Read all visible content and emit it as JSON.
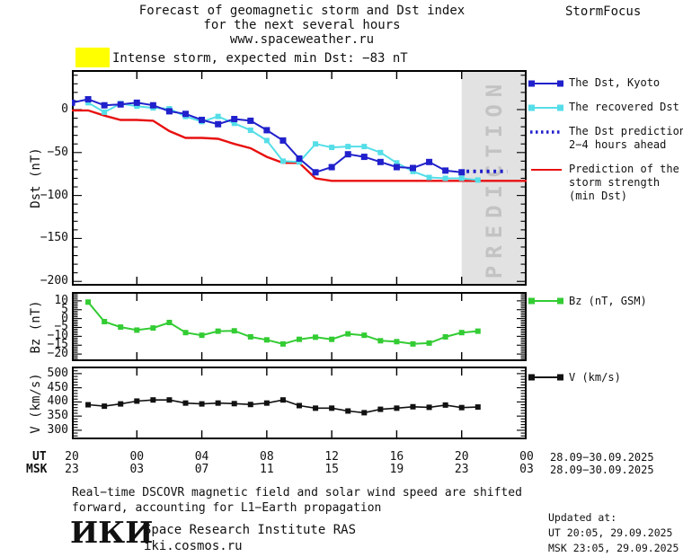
{
  "header": {
    "title_line1": "Forecast of geomagnetic storm and Dst index",
    "title_line2": "for the next several hours",
    "title_line3": "www.spaceweather.ru",
    "brand": "StormFocus"
  },
  "alert": {
    "swatch_color": "#FFFF00",
    "text": "Intense storm, expected min Dst: −83 nT"
  },
  "legend_dst": [
    {
      "id": "dst_kyoto",
      "style": "line-markers",
      "color": "#2020CC",
      "lines": [
        "The Dst, Kyoto"
      ]
    },
    {
      "id": "recovered_dst",
      "style": "line-markers",
      "color": "#55DEE8",
      "lines": [
        "The recovered Dst"
      ]
    },
    {
      "id": "dst_prediction",
      "style": "dotted",
      "color": "#2020CC",
      "lines": [
        "The Dst prediction",
        "2−4 hours ahead"
      ]
    },
    {
      "id": "storm_strength",
      "style": "line",
      "color": "#E81010",
      "lines": [
        "Prediction of the",
        "storm strength",
        "(min Dst)"
      ]
    }
  ],
  "chart_data": [
    {
      "id": "dst",
      "type": "line",
      "ylabel": "Dst (nT)",
      "x_hours_from": "20:00 UT 28.09",
      "xlim": [
        0,
        28
      ],
      "ylim": [
        46,
        -205
      ],
      "grid": false,
      "xticks": [
        0,
        4,
        8,
        12,
        16,
        20,
        24,
        28
      ],
      "yticks": [
        {
          "v": 0,
          "label": "0"
        },
        {
          "v": -50,
          "label": "−50"
        },
        {
          "v": -100,
          "label": "−100"
        },
        {
          "v": -150,
          "label": "−150"
        },
        {
          "v": -200,
          "label": "−200"
        }
      ],
      "ytick_minor_step": 10,
      "prediction_band": {
        "x0": 24,
        "x1": 28,
        "label": "PREDICTION",
        "fill": "#E2E2E2",
        "text_color": "#C3C3C3"
      },
      "series": [
        {
          "key": "storm_strength",
          "name": "Prediction of the storm strength (min Dst)",
          "color": "#E81010",
          "width": 2.4,
          "marker": 0,
          "x": [
            0,
            1,
            2,
            3,
            4,
            5,
            6,
            7,
            8,
            9,
            10,
            11,
            12,
            13,
            14,
            15,
            16,
            17,
            18,
            19,
            20,
            21,
            22,
            23,
            24,
            25,
            26,
            27,
            28
          ],
          "y": [
            -1,
            -1,
            -7,
            -12,
            -12,
            -13,
            -25,
            -33,
            -33,
            -34,
            -40,
            -45,
            -55,
            -62,
            -62,
            -80,
            -83,
            -83,
            -83,
            -83,
            -83,
            -83,
            -83,
            -83,
            -83,
            -83,
            -83,
            -83,
            -83
          ]
        },
        {
          "key": "recovered_dst",
          "name": "The recovered Dst",
          "color": "#55DEE8",
          "width": 2,
          "marker": 6,
          "x": [
            1,
            2,
            3,
            4,
            5,
            6,
            7,
            8,
            9,
            10,
            11,
            12,
            13,
            14,
            15,
            16,
            17,
            18,
            19,
            20,
            21,
            22,
            23,
            24,
            25
          ],
          "y": [
            8,
            -3,
            7,
            4,
            2,
            1,
            -8,
            -14,
            -8,
            -16,
            -24,
            -36,
            -60,
            -61,
            -40,
            -44,
            -43,
            -43,
            -50,
            -62,
            -72,
            -79,
            -80,
            -80,
            -82
          ]
        },
        {
          "key": "dst_kyoto",
          "name": "The Dst, Kyoto",
          "color": "#2020CC",
          "width": 2,
          "marker": 7,
          "x": [
            0,
            1,
            2,
            3,
            4,
            5,
            6,
            7,
            8,
            9,
            10,
            11,
            12,
            13,
            14,
            15,
            16,
            17,
            18,
            19,
            20,
            21,
            22,
            23,
            24
          ],
          "y": [
            8,
            12,
            5,
            6,
            8,
            5,
            -2,
            -5,
            -12,
            -17,
            -11,
            -13,
            -24,
            -36,
            -57,
            -73,
            -67,
            -52,
            -55,
            -61,
            -67,
            -68,
            -61,
            -71,
            -73
          ]
        },
        {
          "key": "dst_prediction",
          "name": "The Dst prediction 2−4 hours ahead",
          "color": "#2020CC",
          "width": 4,
          "marker": 0,
          "dash": "3 4.5",
          "x": [
            24.3,
            26.8
          ],
          "y": [
            -72,
            -72
          ]
        }
      ]
    },
    {
      "id": "bz",
      "type": "line",
      "ylabel": "Bz (nT)",
      "legend": "Bz (nT, GSM)",
      "x_hours_from": "20:00 UT 28.09",
      "xlim": [
        0,
        28
      ],
      "ylim": [
        15,
        -24
      ],
      "grid": false,
      "xticks": [
        0,
        4,
        8,
        12,
        16,
        20,
        24,
        28
      ],
      "yticks": [
        {
          "v": 10,
          "label": "10"
        },
        {
          "v": 5,
          "label": "5"
        },
        {
          "v": 0,
          "label": "0"
        },
        {
          "v": -5,
          "label": "−5"
        },
        {
          "v": -10,
          "label": "−10"
        },
        {
          "v": -15,
          "label": "−15"
        },
        {
          "v": -20,
          "label": "−20"
        }
      ],
      "ytick_minor_step": 1,
      "series": [
        {
          "key": "bz",
          "name": "Bz (nT, GSM)",
          "color": "#33CC33",
          "width": 2,
          "marker": 6,
          "x": [
            1,
            2,
            3,
            4,
            5,
            6,
            7,
            8,
            9,
            10,
            11,
            12,
            13,
            14,
            15,
            16,
            17,
            18,
            19,
            20,
            21,
            22,
            23,
            24,
            25
          ],
          "y": [
            9.3,
            -1.7,
            -4.8,
            -6.5,
            -5.3,
            -2.2,
            -7.9,
            -9.4,
            -7.1,
            -6.9,
            -10.3,
            -12,
            -14.3,
            -11.7,
            -10.5,
            -11.7,
            -8.6,
            -9.4,
            -12.5,
            -13,
            -14.3,
            -13.8,
            -10.3,
            -7.9,
            -7.1
          ]
        }
      ]
    },
    {
      "id": "v",
      "type": "line",
      "ylabel": "V (km/s)",
      "legend": "V (km/s)",
      "x_hours_from": "20:00 UT 28.09",
      "xlim": [
        0,
        28
      ],
      "ylim": [
        525,
        268
      ],
      "grid": false,
      "xticks": [
        0,
        4,
        8,
        12,
        16,
        20,
        24,
        28
      ],
      "yticks": [
        {
          "v": 500,
          "label": "500"
        },
        {
          "v": 450,
          "label": "450"
        },
        {
          "v": 400,
          "label": "400"
        },
        {
          "v": 350,
          "label": "350"
        },
        {
          "v": 300,
          "label": "300"
        }
      ],
      "ytick_minor_step": 10,
      "series": [
        {
          "key": "v",
          "name": "V (km/s)",
          "color": "#111111",
          "width": 1.6,
          "marker": 6,
          "x": [
            1,
            2,
            3,
            4,
            5,
            6,
            7,
            8,
            9,
            10,
            11,
            12,
            13,
            14,
            15,
            16,
            17,
            18,
            19,
            20,
            21,
            22,
            23,
            24,
            25
          ],
          "y": [
            390,
            385,
            393,
            403,
            407,
            407,
            396,
            393,
            396,
            394,
            391,
            396,
            407,
            387,
            378,
            378,
            368,
            362,
            374,
            378,
            383,
            381,
            389,
            380,
            382
          ]
        }
      ]
    }
  ],
  "xaxis": {
    "ut_label": "UT",
    "msk_label": "MSK",
    "ut_ticks": [
      "20",
      "00",
      "04",
      "08",
      "12",
      "16",
      "20",
      "00"
    ],
    "msk_ticks": [
      "23",
      "03",
      "07",
      "11",
      "15",
      "19",
      "23",
      "03"
    ],
    "ut_date": "28.09−30.09.2025",
    "msk_date": "28.09−30.09.2025"
  },
  "footnote": {
    "line1": "Real−time DSCOVR magnetic field and solar wind speed are shifted",
    "line2": "forward, accounting for L1−Earth propagation"
  },
  "footer": {
    "logo": "ИКИ",
    "org": "Space Research Institute RAS",
    "site": "iki.cosmos.ru",
    "updated_label": "Updated at:",
    "updated_ut": "UT  20:05, 29.09.2025",
    "updated_msk": "MSK 23:05, 29.09.2025"
  }
}
